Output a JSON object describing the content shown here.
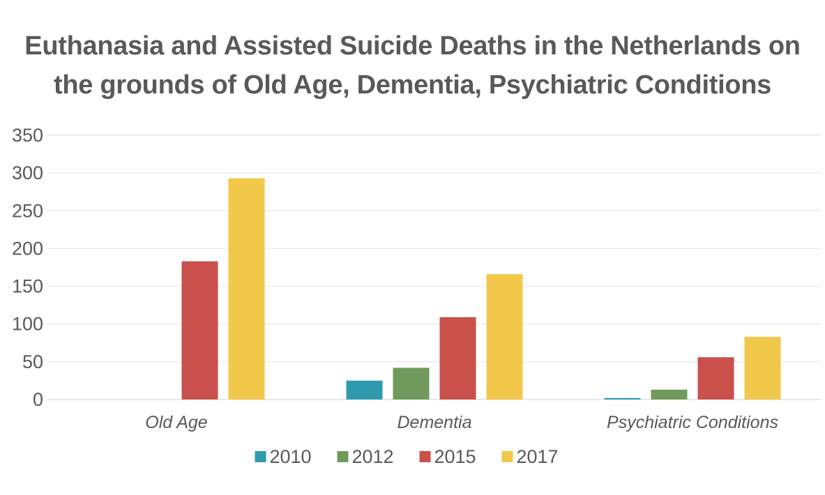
{
  "chart_data": {
    "type": "bar",
    "title_lines": [
      "Euthanasia and Assisted Suicide Deaths in the Netherlands on",
      "the grounds of Old Age, Dementia, Psychiatric Conditions"
    ],
    "categories": [
      "Old Age",
      "Dementia",
      "Psychiatric Conditions"
    ],
    "series": [
      {
        "name": "2010",
        "color": "#2f9aae",
        "values": [
          0,
          25,
          2
        ]
      },
      {
        "name": "2012",
        "color": "#6f9a5b",
        "values": [
          0,
          42,
          13
        ]
      },
      {
        "name": "2015",
        "color": "#c9504b",
        "values": [
          183,
          109,
          56
        ]
      },
      {
        "name": "2017",
        "color": "#f2c84b",
        "values": [
          293,
          166,
          83
        ]
      }
    ],
    "ylim": [
      0,
      350
    ],
    "yticks": [
      0,
      50,
      100,
      150,
      200,
      250,
      300,
      350
    ],
    "xlabel": "",
    "ylabel": "",
    "grid": true,
    "legend_position": "bottom"
  }
}
